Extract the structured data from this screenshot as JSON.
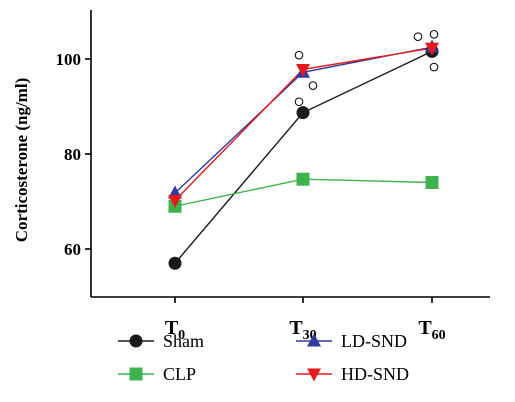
{
  "chart_data": {
    "type": "line",
    "title": "",
    "xlabel": "",
    "ylabel": "Corticosterone (ng/ml)",
    "ylim": [
      50,
      110
    ],
    "y_ticks": [
      60,
      80,
      100
    ],
    "categories": [
      {
        "main": "T",
        "sub": "0"
      },
      {
        "main": "T",
        "sub": "30"
      },
      {
        "main": "T",
        "sub": "60"
      }
    ],
    "series": [
      {
        "name": "Sham",
        "marker": "circle",
        "color": "#1a1a1a",
        "values": [
          57,
          88.7,
          101.6
        ]
      },
      {
        "name": "CLP",
        "marker": "square",
        "color": "#3cb44b",
        "values": [
          69,
          74.7,
          74
        ]
      },
      {
        "name": "LD-SND",
        "marker": "triangle-up",
        "color": "#2f3c9e",
        "values": [
          71.8,
          97.2,
          102.5
        ]
      },
      {
        "name": "HD-SND",
        "marker": "triangle-down",
        "color": "#e41a1c",
        "values": [
          70.2,
          97.8,
          102.3
        ]
      }
    ],
    "individual_points": [
      {
        "x_index": 1,
        "dx": -4,
        "value": 100.8
      },
      {
        "x_index": 1,
        "dx": 10,
        "value": 94.4
      },
      {
        "x_index": 1,
        "dx": -4,
        "value": 91
      },
      {
        "x_index": 2,
        "dx": -14,
        "value": 104.7
      },
      {
        "x_index": 2,
        "dx": 2,
        "value": 105.2
      },
      {
        "x_index": 2,
        "dx": 2,
        "value": 98.3
      }
    ],
    "legend": {
      "placement": "bottom",
      "order": [
        "Sham",
        "LD-SND",
        "CLP",
        "HD-SND"
      ]
    }
  }
}
